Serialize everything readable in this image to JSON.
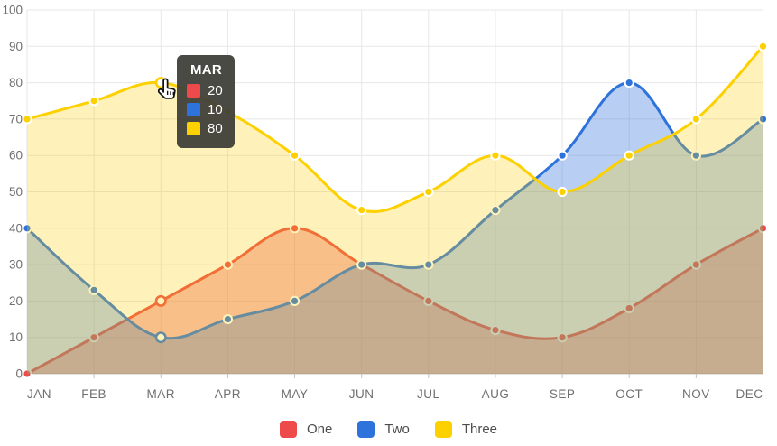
{
  "chart_data": {
    "type": "area",
    "title": "",
    "categories": [
      "JAN",
      "FEB",
      "MAR",
      "APR",
      "MAY",
      "JUN",
      "JUL",
      "AUG",
      "SEP",
      "OCT",
      "NOV",
      "DEC"
    ],
    "series": [
      {
        "name": "One",
        "color": "#ee4a4b",
        "values": [
          0,
          10,
          20,
          30,
          40,
          30,
          20,
          12,
          10,
          18,
          30,
          40
        ]
      },
      {
        "name": "Two",
        "color": "#2e73dc",
        "values": [
          40,
          23,
          10,
          15,
          20,
          30,
          30,
          45,
          60,
          80,
          60,
          70
        ]
      },
      {
        "name": "Three",
        "color": "#fdd000",
        "values": [
          70,
          75,
          80,
          72,
          60,
          45,
          50,
          60,
          50,
          60,
          70,
          90
        ]
      }
    ],
    "ylim": [
      0,
      100
    ],
    "y_ticks": [
      0,
      10,
      20,
      30,
      40,
      50,
      60,
      70,
      80,
      90,
      100
    ],
    "grid": true,
    "legend_position": "bottom",
    "hover_index": 2
  },
  "tooltip": {
    "title": "MAR",
    "rows": [
      {
        "series": "One",
        "value": "20",
        "color": "#ee4a4b"
      },
      {
        "series": "Two",
        "value": "10",
        "color": "#2e73dc"
      },
      {
        "series": "Three",
        "value": "80",
        "color": "#fdd000"
      }
    ]
  },
  "colors": {
    "grid": "#e7e7e7",
    "axis_line": "#c3c3c3",
    "axis_label": "#6f6f6f",
    "tooltip_bg": "#3c3c36"
  }
}
